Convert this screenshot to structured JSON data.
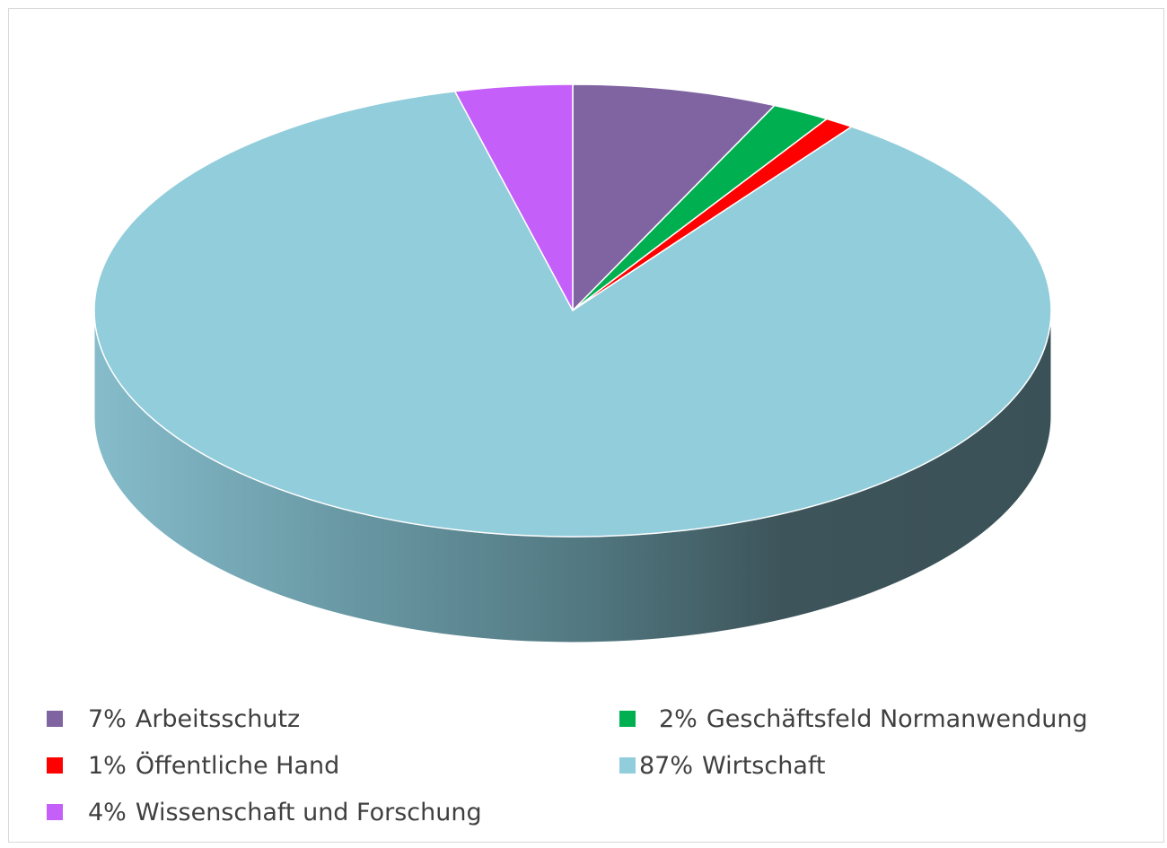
{
  "chart_data": {
    "type": "pie",
    "style": "3d",
    "slices": [
      {
        "label": "Arbeitsschutz",
        "percent_label": "7%",
        "value": 7,
        "color": "#8064a2"
      },
      {
        "label": "Geschäftsfeld Normanwendung",
        "percent_label": "2%",
        "value": 2,
        "color": "#00b050"
      },
      {
        "label": "Öffentliche Hand",
        "percent_label": "1%",
        "value": 1,
        "color": "#ff0000"
      },
      {
        "label": "Wirtschaft",
        "percent_label": "87%",
        "value": 87,
        "color": "#92cddc"
      },
      {
        "label": "Wissenschaft und Forschung",
        "percent_label": "4%",
        "value": 4,
        "color": "#c55ffa"
      }
    ],
    "legend_position": "bottom"
  },
  "legend": [
    {
      "pct": "7%",
      "name": "Arbeitsschutz",
      "color": "#8064a2"
    },
    {
      "pct": "2%",
      "name": "Geschäftsfeld Normanwendung",
      "color": "#00b050"
    },
    {
      "pct": "1%",
      "name": "Öffentliche Hand",
      "color": "#ff0000"
    },
    {
      "pct": "87%",
      "name": "Wirtschaft",
      "color": "#92cddc"
    },
    {
      "pct": "4%",
      "name": "Wissenschaft und Forschung",
      "color": "#c55ffa"
    }
  ]
}
